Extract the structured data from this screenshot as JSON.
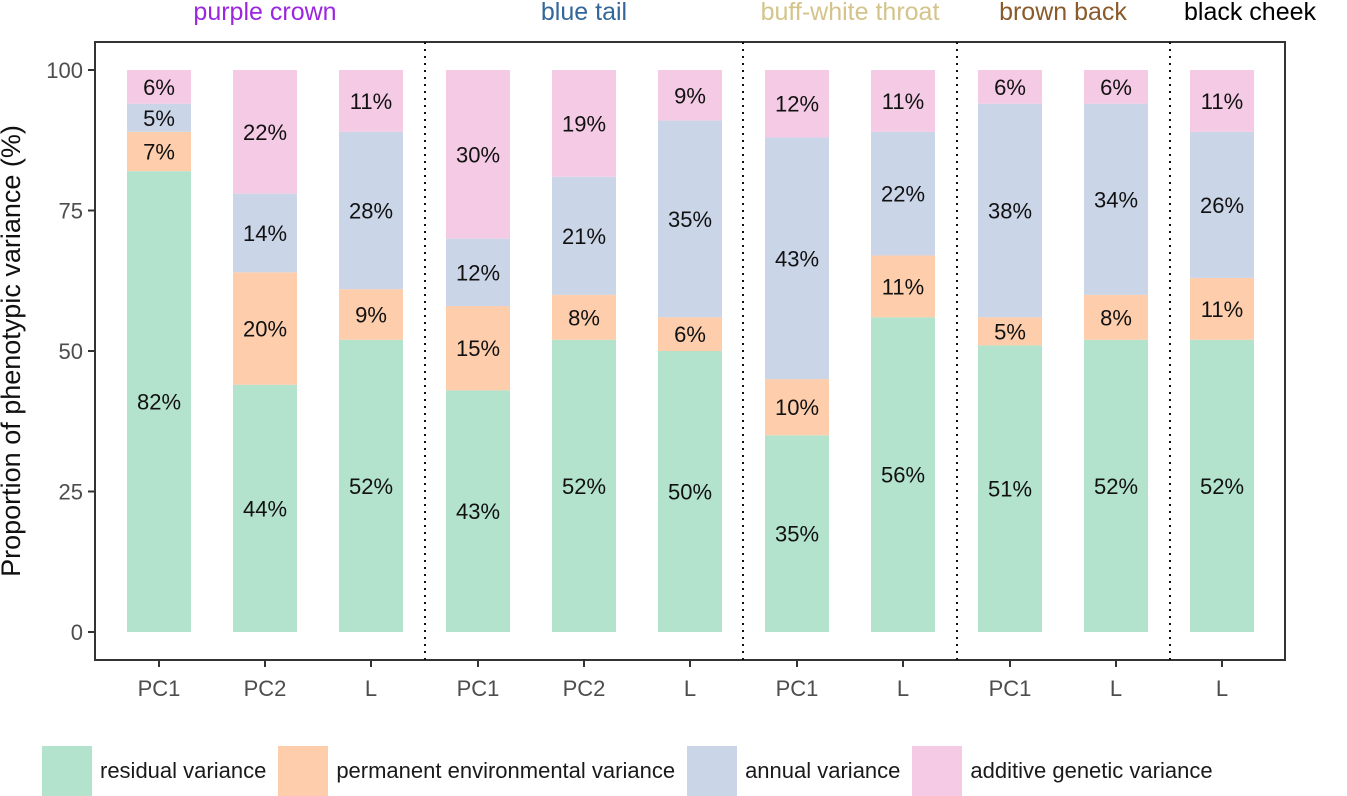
{
  "chart_data": {
    "type": "bar",
    "stacked": true,
    "ylabel": "Proportion of phenotypic variance (%)",
    "ylim": [
      0,
      100
    ],
    "yticks": [
      "0",
      "25",
      "50",
      "75",
      "100"
    ],
    "groups": [
      {
        "name": "purple crown",
        "color": "#9b26e0",
        "categories": [
          "PC1",
          "PC2",
          "L"
        ]
      },
      {
        "name": "blue tail",
        "color": "#336699",
        "categories": [
          "PC1",
          "PC2",
          "L"
        ]
      },
      {
        "name": "buff-white throat",
        "color": "#d4c38a",
        "categories": [
          "PC1",
          "L"
        ]
      },
      {
        "name": "brown back",
        "color": "#8b5a2b",
        "categories": [
          "PC1",
          "L"
        ]
      },
      {
        "name": "black cheek",
        "color": "#000000",
        "categories": [
          "L"
        ]
      }
    ],
    "categories": [
      "PC1",
      "PC2",
      "L",
      "PC1",
      "PC2",
      "L",
      "PC1",
      "L",
      "PC1",
      "L",
      "L"
    ],
    "series": [
      {
        "name": "residual variance",
        "color": "#b3e2cd",
        "values": [
          82,
          44,
          52,
          43,
          52,
          50,
          35,
          56,
          51,
          52,
          52
        ],
        "labels": [
          "82%",
          "44%",
          "52%",
          "43%",
          "52%",
          "50%",
          "35%",
          "56%",
          "51%",
          "52%",
          "52%"
        ]
      },
      {
        "name": "permanent environmental variance",
        "color": "#fdcdac",
        "values": [
          7,
          20,
          9,
          15,
          8,
          6,
          10,
          11,
          5,
          8,
          11
        ],
        "labels": [
          "7%",
          "20%",
          "9%",
          "15%",
          "8%",
          "6%",
          "10%",
          "11%",
          "5%",
          "8%",
          "11%"
        ]
      },
      {
        "name": "annual variance",
        "color": "#cbd5e8",
        "values": [
          5,
          14,
          28,
          12,
          21,
          35,
          43,
          22,
          38,
          34,
          26
        ],
        "labels": [
          "5%",
          "14%",
          "28%",
          "12%",
          "21%",
          "35%",
          "43%",
          "22%",
          "38%",
          "34%",
          "26%"
        ]
      },
      {
        "name": "additive genetic variance",
        "color": "#f4cae4",
        "values": [
          6,
          22,
          11,
          30,
          19,
          9,
          12,
          11,
          6,
          6,
          11
        ],
        "labels": [
          "6%",
          "22%",
          "11%",
          "30%",
          "19%",
          "9%",
          "12%",
          "11%",
          "6%",
          "6%",
          "11%"
        ]
      }
    ],
    "legend": "bottom"
  }
}
